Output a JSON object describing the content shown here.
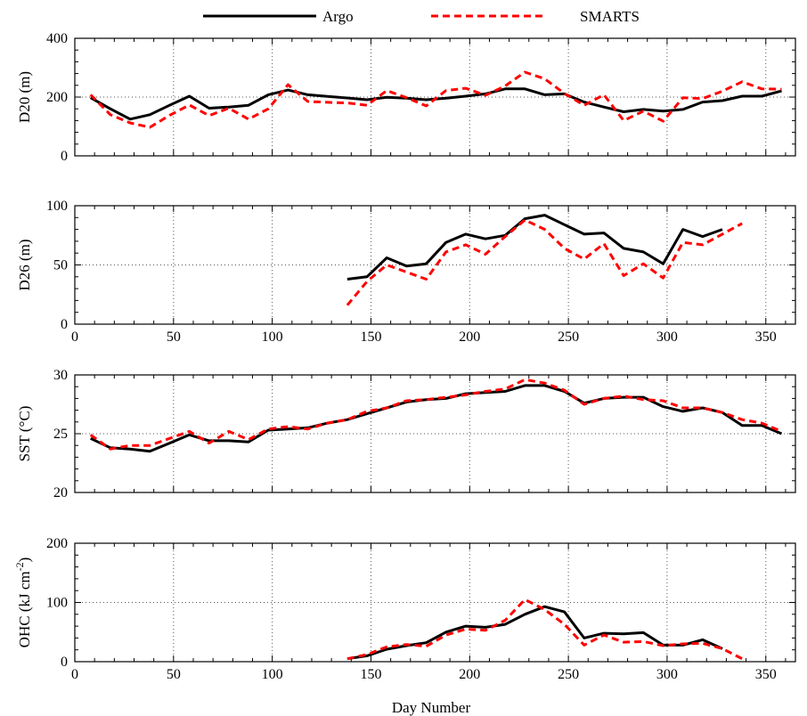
{
  "legend": {
    "items": [
      {
        "name": "Argo",
        "color": "#000000",
        "dash": "solid"
      },
      {
        "name": "SMARTS",
        "color": "#ff0000",
        "dash": "dashed"
      }
    ]
  },
  "x_axis": {
    "label": "Day Number",
    "range": [
      0,
      365
    ],
    "ticks": [
      0,
      50,
      100,
      150,
      200,
      250,
      300,
      350
    ]
  },
  "chart_data": [
    {
      "type": "line",
      "ylabel": "D20 (m)",
      "ylim": [
        0,
        400
      ],
      "yticks": [
        0,
        200,
        400
      ],
      "grid": true,
      "xtick_labels_shown": false,
      "series": [
        {
          "name": "Argo",
          "x": [
            8,
            18,
            28,
            38,
            48,
            58,
            68,
            78,
            88,
            98,
            108,
            118,
            128,
            138,
            148,
            158,
            168,
            178,
            188,
            198,
            208,
            218,
            228,
            238,
            248,
            258,
            268,
            278,
            288,
            298,
            308,
            318,
            328,
            338,
            348,
            358
          ],
          "y": [
            198,
            160,
            125,
            140,
            172,
            203,
            162,
            166,
            172,
            208,
            224,
            208,
            202,
            197,
            191,
            199,
            196,
            191,
            196,
            203,
            211,
            228,
            228,
            208,
            211,
            183,
            166,
            150,
            158,
            152,
            158,
            183,
            188,
            203,
            203,
            221
          ]
        },
        {
          "name": "SMARTS",
          "x": [
            8,
            18,
            28,
            38,
            48,
            58,
            68,
            78,
            88,
            98,
            108,
            118,
            128,
            138,
            148,
            158,
            168,
            178,
            188,
            198,
            208,
            218,
            228,
            238,
            248,
            258,
            268,
            278,
            288,
            298,
            308,
            318,
            328,
            338,
            348,
            358
          ],
          "y": [
            208,
            140,
            112,
            97,
            138,
            173,
            137,
            162,
            125,
            160,
            242,
            185,
            182,
            180,
            172,
            222,
            198,
            170,
            222,
            230,
            206,
            238,
            285,
            262,
            212,
            172,
            208,
            120,
            152,
            118,
            198,
            195,
            220,
            252,
            228,
            227
          ]
        }
      ]
    },
    {
      "type": "line",
      "ylabel": "D26 (m)",
      "ylim": [
        0,
        100
      ],
      "yticks": [
        0,
        50,
        100
      ],
      "grid": true,
      "xtick_labels_shown": true,
      "series": [
        {
          "name": "Argo",
          "x": [
            138,
            148,
            158,
            168,
            178,
            188,
            198,
            208,
            218,
            228,
            238,
            248,
            258,
            268,
            278,
            288,
            298,
            308,
            318,
            328
          ],
          "y": [
            38,
            40,
            56,
            49,
            51,
            69,
            76,
            72,
            75,
            89,
            92,
            84,
            76,
            77,
            64,
            61,
            51,
            80,
            74,
            80
          ]
        },
        {
          "name": "SMARTS",
          "x": [
            138,
            148,
            158,
            168,
            178,
            188,
            198,
            208,
            218,
            228,
            238,
            248,
            258,
            268,
            278,
            288,
            298,
            308,
            318,
            328,
            338
          ],
          "y": [
            16,
            36,
            50,
            44,
            38,
            61,
            67,
            59,
            74,
            88,
            80,
            64,
            55,
            68,
            41,
            51,
            39,
            69,
            67,
            76,
            85
          ]
        }
      ]
    },
    {
      "type": "line",
      "ylabel": "SST (°C)",
      "ylim": [
        20,
        30
      ],
      "yticks": [
        20,
        25,
        30
      ],
      "grid": true,
      "xtick_labels_shown": false,
      "series": [
        {
          "name": "Argo",
          "x": [
            8,
            18,
            28,
            38,
            48,
            58,
            68,
            78,
            88,
            98,
            108,
            118,
            128,
            138,
            148,
            158,
            168,
            178,
            188,
            198,
            208,
            218,
            228,
            238,
            248,
            258,
            268,
            278,
            288,
            298,
            308,
            318,
            328,
            338,
            348,
            358
          ],
          "y": [
            24.6,
            23.8,
            23.7,
            23.5,
            24.2,
            24.9,
            24.4,
            24.4,
            24.3,
            25.3,
            25.4,
            25.5,
            25.9,
            26.2,
            26.7,
            27.2,
            27.7,
            27.9,
            28.0,
            28.4,
            28.5,
            28.6,
            29.1,
            29.1,
            28.6,
            27.6,
            28.0,
            28.1,
            28.1,
            27.3,
            26.9,
            27.2,
            26.8,
            25.7,
            25.7,
            25.0
          ]
        },
        {
          "name": "SMARTS",
          "x": [
            8,
            18,
            28,
            38,
            48,
            58,
            68,
            78,
            88,
            98,
            108,
            118,
            128,
            138,
            148,
            158,
            168,
            178,
            188,
            198,
            208,
            218,
            228,
            238,
            248,
            258,
            268,
            278,
            288,
            298,
            308,
            318,
            328,
            338,
            348,
            358
          ],
          "y": [
            24.9,
            23.7,
            24.0,
            24.0,
            24.6,
            25.2,
            24.2,
            25.2,
            24.5,
            25.4,
            25.6,
            25.4,
            25.9,
            26.2,
            26.9,
            27.2,
            27.8,
            27.9,
            28.1,
            28.3,
            28.6,
            28.8,
            29.6,
            29.3,
            28.7,
            27.5,
            28.0,
            28.2,
            27.9,
            27.8,
            27.2,
            27.2,
            26.8,
            26.2,
            25.9,
            25.2
          ]
        }
      ]
    },
    {
      "type": "line",
      "ylabel": "OHC (kJ cm-2)",
      "ylim": [
        0,
        200
      ],
      "yticks": [
        0,
        100,
        200
      ],
      "grid": true,
      "xtick_labels_shown": true,
      "series": [
        {
          "name": "Argo",
          "x": [
            138,
            148,
            158,
            168,
            178,
            188,
            198,
            208,
            218,
            228,
            238,
            248,
            258,
            268,
            278,
            288,
            298,
            308,
            318,
            328
          ],
          "y": [
            5,
            10,
            21,
            27,
            32,
            50,
            60,
            58,
            63,
            80,
            93,
            84,
            40,
            48,
            47,
            49,
            28,
            28,
            37,
            22
          ]
        },
        {
          "name": "SMARTS",
          "x": [
            138,
            148,
            158,
            168,
            178,
            188,
            198,
            208,
            218,
            228,
            238,
            248,
            258,
            268,
            278,
            288,
            298,
            308,
            318,
            328,
            338
          ],
          "y": [
            5,
            12,
            25,
            29,
            26,
            45,
            55,
            53,
            70,
            105,
            88,
            63,
            28,
            45,
            33,
            34,
            27,
            30,
            31,
            22,
            5
          ]
        }
      ]
    }
  ]
}
